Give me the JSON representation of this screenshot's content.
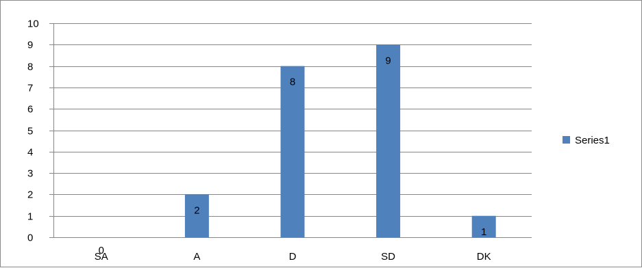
{
  "chart_data": {
    "type": "bar",
    "categories": [
      "SA",
      "A",
      "D",
      "SD",
      "DK"
    ],
    "series": [
      {
        "name": "Series1",
        "values": [
          0,
          2,
          8,
          9,
          1
        ],
        "color": "#4f81bd"
      }
    ],
    "data_labels": [
      "0",
      "2",
      "8",
      "9",
      "1"
    ],
    "ylim": [
      0,
      10
    ],
    "y_ticks": [
      0,
      1,
      2,
      3,
      4,
      5,
      6,
      7,
      8,
      9,
      10
    ],
    "grid": true,
    "grid_color": "#868686",
    "legend_position": "right",
    "title": "",
    "xlabel": "",
    "ylabel": ""
  },
  "legend": {
    "label": "Series1",
    "color": "#4f81bd"
  }
}
